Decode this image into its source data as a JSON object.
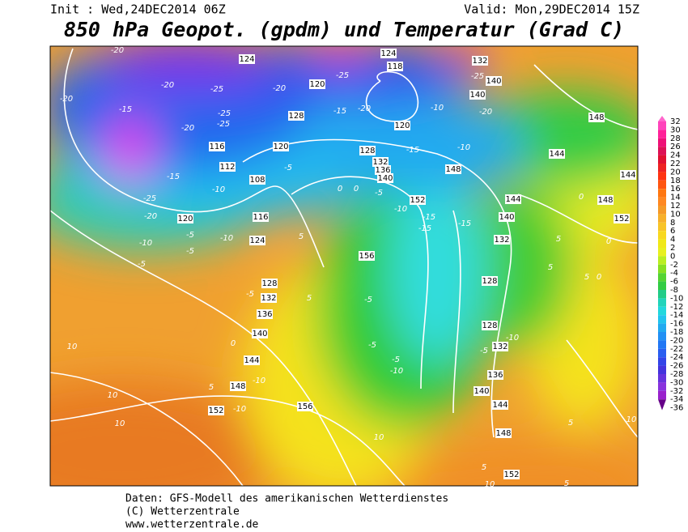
{
  "header": {
    "init": "Init : Wed,24DEC2014 06Z",
    "valid": "Valid: Mon,29DEC2014 15Z",
    "title": "850 hPa Geopot. (gpdm) und Temperatur (Grad C)"
  },
  "footer": {
    "source": "Daten: GFS-Modell des amerikanischen Wetterdienstes",
    "copyright": "(C) Wetterzentrale",
    "url": "www.wetterzentrale.de"
  },
  "colorbar": {
    "levels": [
      32,
      30,
      28,
      26,
      24,
      22,
      20,
      18,
      16,
      14,
      12,
      10,
      8,
      6,
      4,
      2,
      0,
      -2,
      -4,
      -6,
      -8,
      -10,
      -12,
      -14,
      -16,
      -18,
      -20,
      -22,
      -24,
      -26,
      -28,
      -30,
      -32,
      -34,
      -36
    ],
    "colors": [
      "#ff66cc",
      "#ff44bb",
      "#ff2299",
      "#ee1177",
      "#dd1155",
      "#e01030",
      "#ee2222",
      "#ff3311",
      "#ff5511",
      "#ff7711",
      "#ff8822",
      "#f59a28",
      "#f7b02a",
      "#f8c428",
      "#f8d820",
      "#f0e818",
      "#e8f020",
      "#bbee22",
      "#88e022",
      "#55d433",
      "#33cc44",
      "#22cc88",
      "#22d4bb",
      "#22d8dd",
      "#22c4ee",
      "#22aaf0",
      "#2290f4",
      "#2277f4",
      "#2a5ef0",
      "#3344e8",
      "#4433dd",
      "#6633dd",
      "#8833dd",
      "#9922cc",
      "#660088"
    ]
  },
  "map": {
    "geopotential_labels": [
      124,
      124,
      118,
      132,
      140,
      140,
      120,
      128,
      120,
      116,
      112,
      108,
      128,
      132,
      136,
      140,
      148,
      152,
      144,
      140,
      132,
      116,
      120,
      124,
      128,
      132,
      136,
      140,
      144,
      148,
      152,
      156,
      156,
      128,
      128,
      132,
      136,
      140,
      144,
      148,
      152,
      144,
      148,
      144,
      148,
      152,
      120
    ],
    "temperature_labels": [
      -20,
      -20,
      -20,
      -15,
      -25,
      -25,
      -25,
      -20,
      -15,
      -10,
      -25,
      -20,
      -5,
      -10,
      -5,
      -10,
      -5,
      -5,
      5,
      5,
      0,
      -10,
      5,
      -10,
      -5,
      0,
      -5,
      -10,
      -15,
      -15,
      -15,
      -5,
      -5,
      -5,
      -10,
      -5,
      -10,
      0,
      0,
      5,
      5,
      5,
      0,
      10,
      10,
      10,
      10,
      5,
      10,
      5,
      10,
      5,
      -10,
      -15,
      -20,
      -25,
      -10,
      -15,
      -25,
      -20,
      -20,
      0
    ]
  }
}
